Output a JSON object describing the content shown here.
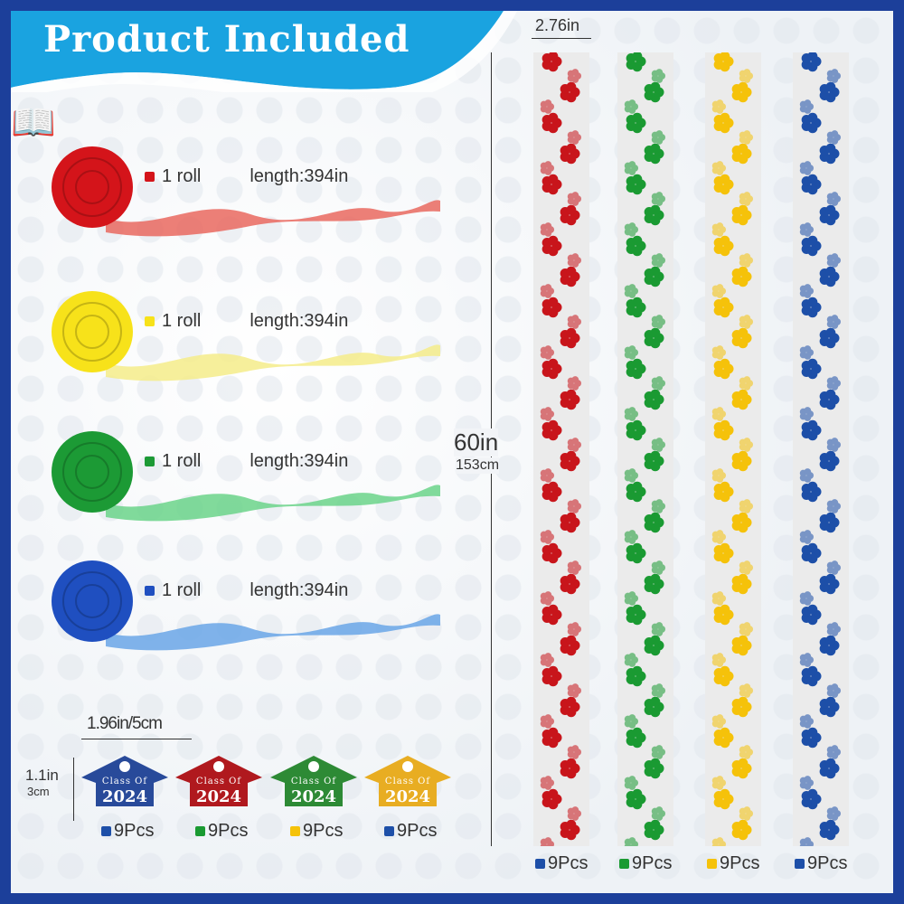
{
  "header": {
    "title": "Product Included"
  },
  "colors": {
    "red": "#c8151b",
    "yellow": "#f5cf0a",
    "green": "#1a9a32",
    "blue": "#1d4fa8",
    "frame": "#1c3f9a",
    "banner": "#1aa3e0"
  },
  "rolls": [
    {
      "color": "#d4141a",
      "light": "#e9685f",
      "qty": "1 roll",
      "length": "length:394in"
    },
    {
      "color": "#f7e21a",
      "light": "#f5ec8a",
      "qty": "1 roll",
      "length": "length:394in"
    },
    {
      "color": "#1c9a35",
      "light": "#6bd38a",
      "qty": "1 roll",
      "length": "length:394in"
    },
    {
      "color": "#1f4fc0",
      "light": "#6aa6e6",
      "qty": "1 roll",
      "length": "length:394in"
    }
  ],
  "strips": {
    "width_label": "2.76in",
    "length_label": "60in",
    "length_label_cm": "153cm",
    "items": [
      {
        "color": "#c8151b",
        "square": "#1d4fa8",
        "count": "9Pcs"
      },
      {
        "color": "#1a9a32",
        "square": "#1a9a32",
        "count": "9Pcs"
      },
      {
        "color": "#f5c20a",
        "square": "#f5c20a",
        "count": "9Pcs"
      },
      {
        "color": "#1d4fa8",
        "square": "#1d4fa8",
        "count": "9Pcs"
      }
    ]
  },
  "tags": {
    "width_label": "1.96in/5cm",
    "height_label": "1.1in",
    "height_label_cm": "3cm",
    "items": [
      {
        "color": "#284a9a",
        "line1": "Class Of",
        "line2": "2024",
        "square": "#1d4fa8",
        "count": "9Pcs"
      },
      {
        "color": "#b0191e",
        "line1": "Class Of",
        "line2": "2024",
        "square": "#1a9a32",
        "count": "9Pcs"
      },
      {
        "color": "#2d8a35",
        "line1": "Class Of",
        "line2": "2024",
        "square": "#f5c20a",
        "count": "9Pcs"
      },
      {
        "color": "#e8ad22",
        "line1": "Class Of",
        "line2": "2024",
        "square": "#1d4fa8",
        "count": "9Pcs"
      }
    ]
  }
}
